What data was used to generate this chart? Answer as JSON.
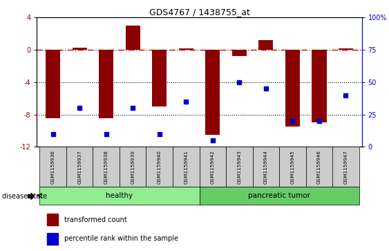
{
  "title": "GDS4767 / 1438755_at",
  "samples": [
    "GSM1159936",
    "GSM1159937",
    "GSM1159938",
    "GSM1159939",
    "GSM1159940",
    "GSM1159941",
    "GSM1159942",
    "GSM1159943",
    "GSM1159944",
    "GSM1159945",
    "GSM1159946",
    "GSM1159947"
  ],
  "transformed_count": [
    -8.5,
    0.3,
    -8.5,
    3.0,
    -7.0,
    0.2,
    -10.5,
    -0.8,
    1.2,
    -9.5,
    -9.0,
    0.2
  ],
  "percentile_rank": [
    10,
    30,
    10,
    30,
    10,
    35,
    5,
    50,
    45,
    20,
    20,
    40
  ],
  "bar_color": "#8B0000",
  "dot_color": "#0000CD",
  "ylim_left": [
    -12,
    4
  ],
  "ylim_right": [
    0,
    100
  ],
  "grid_dotted_values": [
    -4,
    -8
  ],
  "zero_line_color": "#CC0000",
  "tick_label_bg": "#cccccc",
  "group_healthy_color": "#90EE90",
  "group_tumor_color": "#66CC66",
  "healthy_count": 6,
  "tumor_count": 6
}
